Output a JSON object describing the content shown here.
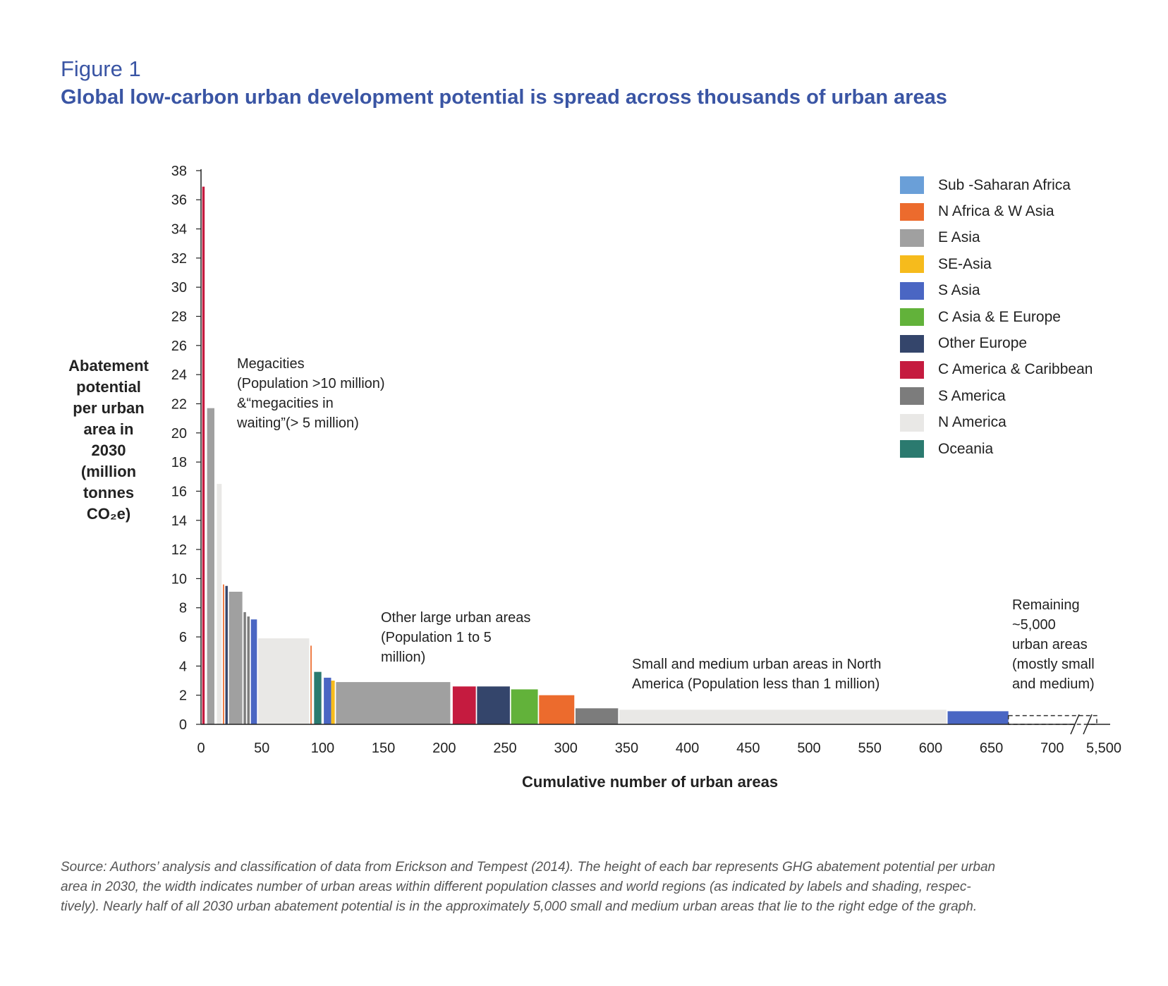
{
  "figure_label": "Figure 1",
  "title": "Global low-carbon urban development potential is spread across thousands of urban areas",
  "ylabel_lines": [
    "Abatement",
    "potential",
    "per urban",
    "area in",
    "2030",
    "(million",
    "tonnes",
    "CO₂e)"
  ],
  "xlabel": "Cumulative number of urban areas",
  "annotations": {
    "megacities": [
      "Megacities",
      "(Population >10 million)",
      "&“megacities in",
      "waiting”(> 5 million)"
    ],
    "large": [
      "Other large urban areas",
      "(Population 1 to 5",
      "million)"
    ],
    "small": [
      "Small and medium urban areas in North",
      "America (Population less than 1 million)"
    ],
    "remaining": [
      "Remaining",
      "~5,000",
      "urban areas",
      "(mostly small",
      "and medium)"
    ]
  },
  "source_lines": [
    "Source: Authors’ analysis and classification of data from Erickson and Tempest (2014). The height of each bar represents GHG abatement potential per urban",
    "area in 2030, the width indicates number of urban areas within different population classes and world regions (as indicated by labels and shading, respec-",
    "tively). Nearly half of all 2030 urban abatement potential is in the approximately 5,000 small and medium urban areas that lie to the right edge of the graph."
  ],
  "legend": [
    {
      "label": "Sub -Saharan Africa",
      "color": "#6a9fd8"
    },
    {
      "label": "N Africa & W Asia",
      "color": "#ec6b2d"
    },
    {
      "label": "E Asia",
      "color": "#a0a0a0"
    },
    {
      "label": "SE-Asia",
      "color": "#f6bb1c"
    },
    {
      "label": "S Asia",
      "color": "#4a66c3"
    },
    {
      "label": "C Asia & E Europe",
      "color": "#62b23a"
    },
    {
      "label": "Other Europe",
      "color": "#34456b"
    },
    {
      "label": "C America & Caribbean",
      "color": "#c51b3f"
    },
    {
      "label": "S America",
      "color": "#7c7c7c"
    },
    {
      "label": "N America",
      "color": "#e9e8e6"
    },
    {
      "label": "Oceania",
      "color": "#2b7a6f"
    }
  ],
  "chart_data": {
    "type": "bar",
    "variable_width": true,
    "xlim": [
      0,
      750
    ],
    "ylim": [
      0,
      38
    ],
    "x_ticks": [
      "0",
      "50",
      "100",
      "150",
      "200",
      "250",
      "300",
      "350",
      "400",
      "450",
      "500",
      "550",
      "600",
      "650",
      "700",
      "5,500"
    ],
    "y_ticks": [
      0,
      2,
      4,
      6,
      8,
      10,
      12,
      14,
      16,
      18,
      20,
      22,
      24,
      26,
      28,
      30,
      32,
      34,
      36,
      38
    ],
    "bars": [
      {
        "region": "C America & Caribbean",
        "x0": 1,
        "x1": 3,
        "value": 36.9
      },
      {
        "region": "E Asia",
        "x0": 5,
        "x1": 11,
        "value": 21.7
      },
      {
        "region": "N America",
        "x0": 13,
        "x1": 17,
        "value": 16.5
      },
      {
        "region": "N Africa & W Asia",
        "x0": 18,
        "x1": 19,
        "value": 9.6
      },
      {
        "region": "Other Europe",
        "x0": 20,
        "x1": 22,
        "value": 9.5
      },
      {
        "region": "E Asia",
        "x0": 23,
        "x1": 34,
        "value": 9.1
      },
      {
        "region": "S America",
        "x0": 35,
        "x1": 37,
        "value": 7.7
      },
      {
        "region": "S America",
        "x0": 38,
        "x1": 40,
        "value": 7.4
      },
      {
        "region": "S Asia",
        "x0": 41,
        "x1": 46,
        "value": 7.2
      },
      {
        "region": "N America",
        "x0": 47,
        "x1": 89,
        "value": 5.9
      },
      {
        "region": "N Africa & W Asia",
        "x0": 90,
        "x1": 91,
        "value": 5.4
      },
      {
        "region": "Oceania",
        "x0": 93,
        "x1": 99,
        "value": 3.6
      },
      {
        "region": "S Asia",
        "x0": 101,
        "x1": 107,
        "value": 3.2
      },
      {
        "region": "SE-Asia",
        "x0": 107,
        "x1": 110,
        "value": 3.0
      },
      {
        "region": "E Asia",
        "x0": 111,
        "x1": 205,
        "value": 2.9
      },
      {
        "region": "C America & Caribbean",
        "x0": 207,
        "x1": 226,
        "value": 2.6
      },
      {
        "region": "Other Europe",
        "x0": 227,
        "x1": 254,
        "value": 2.6
      },
      {
        "region": "C Asia & E Europe",
        "x0": 255,
        "x1": 277,
        "value": 2.4
      },
      {
        "region": "N Africa & W Asia",
        "x0": 278,
        "x1": 307,
        "value": 2.0
      },
      {
        "region": "S America",
        "x0": 308,
        "x1": 343,
        "value": 1.1
      },
      {
        "region": "N America",
        "x0": 344,
        "x1": 613,
        "value": 1.0
      },
      {
        "region": "S Asia",
        "x0": 614,
        "x1": 664,
        "value": 0.9
      }
    ],
    "remaining": {
      "label": "Remaining ~5,000 urban areas",
      "x0": 664,
      "x1": 5500,
      "value": 0.6,
      "style": "dashed outline"
    }
  }
}
